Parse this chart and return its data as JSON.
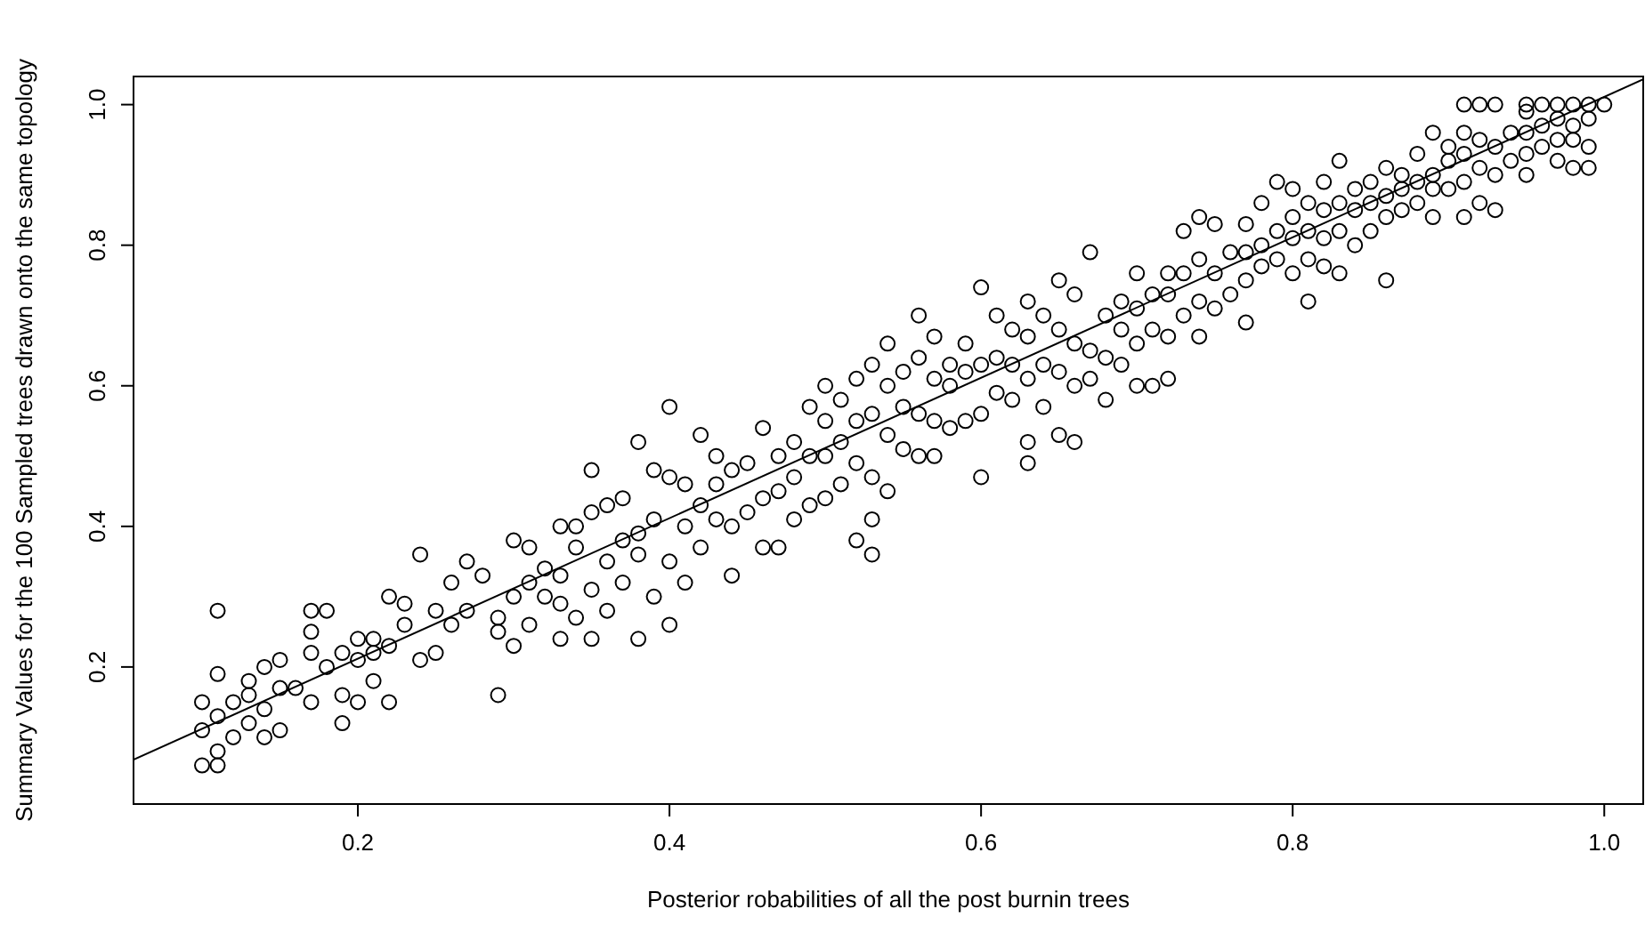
{
  "chart_data": {
    "type": "scatter",
    "xlabel": "Posterior robabilities of all the post burnin trees",
    "ylabel": "Summary Values for the 100 Sampled trees drawn onto the same topology",
    "xlim": [
      0.056,
      1.025
    ],
    "ylim": [
      0.005,
      1.04
    ],
    "xticks": [
      {
        "value": 0.2,
        "label": "0.2"
      },
      {
        "value": 0.4,
        "label": "0.4"
      },
      {
        "value": 0.6,
        "label": "0.6"
      },
      {
        "value": 0.8,
        "label": "0.8"
      },
      {
        "value": 1.0,
        "label": "1.0"
      }
    ],
    "yticks": [
      {
        "value": 0.2,
        "label": "0.2"
      },
      {
        "value": 0.4,
        "label": "0.4"
      },
      {
        "value": 0.6,
        "label": "0.6"
      },
      {
        "value": 0.8,
        "label": "0.8"
      },
      {
        "value": 1.0,
        "label": "1.0"
      }
    ],
    "grid": false,
    "marker": "circle",
    "series": [
      {
        "color": "#000000",
        "x": [
          0.1,
          0.1,
          0.1,
          0.11,
          0.11,
          0.11,
          0.11,
          0.11,
          0.12,
          0.12,
          0.13,
          0.13,
          0.13,
          0.14,
          0.14,
          0.14,
          0.15,
          0.15,
          0.15,
          0.16,
          0.17,
          0.17,
          0.17,
          0.17,
          0.18,
          0.18,
          0.19,
          0.19,
          0.19,
          0.2,
          0.2,
          0.2,
          0.21,
          0.21,
          0.21,
          0.22,
          0.22,
          0.22,
          0.23,
          0.23,
          0.24,
          0.24,
          0.25,
          0.25,
          0.26,
          0.26,
          0.27,
          0.27,
          0.28,
          0.29,
          0.29,
          0.29,
          0.3,
          0.3,
          0.3,
          0.31,
          0.31,
          0.31,
          0.32,
          0.32,
          0.33,
          0.33,
          0.33,
          0.33,
          0.34,
          0.34,
          0.34,
          0.35,
          0.35,
          0.35,
          0.35,
          0.36,
          0.36,
          0.36,
          0.37,
          0.37,
          0.37,
          0.38,
          0.38,
          0.38,
          0.38,
          0.39,
          0.39,
          0.39,
          0.4,
          0.4,
          0.4,
          0.4,
          0.41,
          0.41,
          0.41,
          0.42,
          0.42,
          0.42,
          0.43,
          0.43,
          0.43,
          0.44,
          0.44,
          0.44,
          0.45,
          0.45,
          0.46,
          0.46,
          0.46,
          0.47,
          0.47,
          0.47,
          0.48,
          0.48,
          0.48,
          0.49,
          0.49,
          0.49,
          0.5,
          0.5,
          0.5,
          0.5,
          0.51,
          0.51,
          0.51,
          0.52,
          0.52,
          0.52,
          0.52,
          0.53,
          0.53,
          0.53,
          0.53,
          0.53,
          0.54,
          0.54,
          0.54,
          0.54,
          0.55,
          0.55,
          0.55,
          0.56,
          0.56,
          0.56,
          0.56,
          0.57,
          0.57,
          0.57,
          0.57,
          0.58,
          0.58,
          0.58,
          0.59,
          0.59,
          0.59,
          0.6,
          0.6,
          0.6,
          0.6,
          0.61,
          0.61,
          0.61,
          0.62,
          0.62,
          0.62,
          0.63,
          0.63,
          0.63,
          0.63,
          0.63,
          0.64,
          0.64,
          0.64,
          0.65,
          0.65,
          0.65,
          0.65,
          0.66,
          0.66,
          0.66,
          0.66,
          0.67,
          0.67,
          0.67,
          0.68,
          0.68,
          0.68,
          0.69,
          0.69,
          0.69,
          0.7,
          0.7,
          0.7,
          0.7,
          0.71,
          0.71,
          0.71,
          0.72,
          0.72,
          0.72,
          0.72,
          0.73,
          0.73,
          0.73,
          0.74,
          0.74,
          0.74,
          0.74,
          0.75,
          0.75,
          0.75,
          0.76,
          0.76,
          0.77,
          0.77,
          0.77,
          0.77,
          0.78,
          0.78,
          0.78,
          0.79,
          0.79,
          0.79,
          0.8,
          0.8,
          0.8,
          0.8,
          0.81,
          0.81,
          0.81,
          0.81,
          0.82,
          0.82,
          0.82,
          0.82,
          0.83,
          0.83,
          0.83,
          0.83,
          0.84,
          0.84,
          0.84,
          0.85,
          0.85,
          0.85,
          0.86,
          0.86,
          0.86,
          0.86,
          0.87,
          0.87,
          0.87,
          0.88,
          0.88,
          0.88,
          0.89,
          0.89,
          0.89,
          0.89,
          0.9,
          0.9,
          0.9,
          0.91,
          0.91,
          0.91,
          0.91,
          0.91,
          0.92,
          0.92,
          0.92,
          0.92,
          0.93,
          0.93,
          0.93,
          0.93,
          0.94,
          0.94,
          0.95,
          0.95,
          0.95,
          0.95,
          0.95,
          0.96,
          0.96,
          0.96,
          0.97,
          0.97,
          0.97,
          0.97,
          0.98,
          0.98,
          0.98,
          0.98,
          0.99,
          0.99,
          0.99,
          0.99,
          1.0
        ],
        "values": [
          0.06,
          0.11,
          0.15,
          0.06,
          0.08,
          0.13,
          0.19,
          0.28,
          0.1,
          0.15,
          0.12,
          0.16,
          0.18,
          0.1,
          0.14,
          0.2,
          0.11,
          0.17,
          0.21,
          0.17,
          0.15,
          0.22,
          0.25,
          0.28,
          0.2,
          0.28,
          0.12,
          0.16,
          0.22,
          0.15,
          0.21,
          0.24,
          0.18,
          0.22,
          0.24,
          0.15,
          0.23,
          0.3,
          0.26,
          0.29,
          0.21,
          0.36,
          0.22,
          0.28,
          0.26,
          0.32,
          0.28,
          0.35,
          0.33,
          0.16,
          0.25,
          0.27,
          0.23,
          0.3,
          0.38,
          0.26,
          0.32,
          0.37,
          0.3,
          0.34,
          0.24,
          0.29,
          0.33,
          0.4,
          0.27,
          0.37,
          0.4,
          0.24,
          0.31,
          0.42,
          0.48,
          0.28,
          0.35,
          0.43,
          0.32,
          0.38,
          0.44,
          0.24,
          0.36,
          0.39,
          0.52,
          0.3,
          0.41,
          0.48,
          0.26,
          0.35,
          0.47,
          0.57,
          0.32,
          0.4,
          0.46,
          0.37,
          0.43,
          0.53,
          0.41,
          0.46,
          0.5,
          0.33,
          0.4,
          0.48,
          0.42,
          0.49,
          0.37,
          0.44,
          0.54,
          0.37,
          0.45,
          0.5,
          0.41,
          0.47,
          0.52,
          0.43,
          0.5,
          0.57,
          0.44,
          0.5,
          0.55,
          0.6,
          0.46,
          0.52,
          0.58,
          0.38,
          0.49,
          0.55,
          0.61,
          0.36,
          0.41,
          0.47,
          0.56,
          0.63,
          0.45,
          0.53,
          0.6,
          0.66,
          0.51,
          0.57,
          0.62,
          0.5,
          0.56,
          0.64,
          0.7,
          0.5,
          0.55,
          0.61,
          0.67,
          0.54,
          0.6,
          0.63,
          0.55,
          0.62,
          0.66,
          0.47,
          0.56,
          0.63,
          0.74,
          0.59,
          0.64,
          0.7,
          0.58,
          0.63,
          0.68,
          0.49,
          0.52,
          0.61,
          0.67,
          0.72,
          0.57,
          0.63,
          0.7,
          0.53,
          0.62,
          0.68,
          0.75,
          0.52,
          0.6,
          0.66,
          0.73,
          0.61,
          0.65,
          0.79,
          0.58,
          0.64,
          0.7,
          0.63,
          0.68,
          0.72,
          0.6,
          0.66,
          0.71,
          0.76,
          0.6,
          0.68,
          0.73,
          0.61,
          0.67,
          0.73,
          0.76,
          0.7,
          0.76,
          0.82,
          0.67,
          0.72,
          0.78,
          0.84,
          0.71,
          0.76,
          0.83,
          0.73,
          0.79,
          0.69,
          0.75,
          0.79,
          0.83,
          0.77,
          0.8,
          0.86,
          0.78,
          0.82,
          0.89,
          0.76,
          0.81,
          0.84,
          0.88,
          0.72,
          0.78,
          0.82,
          0.86,
          0.77,
          0.81,
          0.85,
          0.89,
          0.76,
          0.82,
          0.86,
          0.92,
          0.8,
          0.85,
          0.88,
          0.82,
          0.86,
          0.89,
          0.75,
          0.84,
          0.87,
          0.91,
          0.85,
          0.88,
          0.9,
          0.86,
          0.89,
          0.93,
          0.84,
          0.88,
          0.9,
          0.96,
          0.88,
          0.92,
          0.94,
          0.84,
          0.89,
          0.93,
          0.96,
          1.0,
          0.86,
          0.91,
          0.95,
          1.0,
          0.85,
          0.9,
          0.94,
          1.0,
          0.92,
          0.96,
          0.9,
          0.93,
          0.96,
          0.99,
          1.0,
          0.94,
          0.97,
          1.0,
          0.92,
          0.95,
          0.98,
          1.0,
          0.91,
          0.95,
          0.97,
          1.0,
          0.91,
          0.94,
          0.98,
          1.0,
          1.0
        ]
      },
      {
        "type": "line",
        "color": "#000000",
        "marker": "none",
        "line_style": "solid",
        "x": [
          0.056,
          1.025
        ],
        "values": [
          0.068,
          1.036
        ]
      }
    ]
  }
}
